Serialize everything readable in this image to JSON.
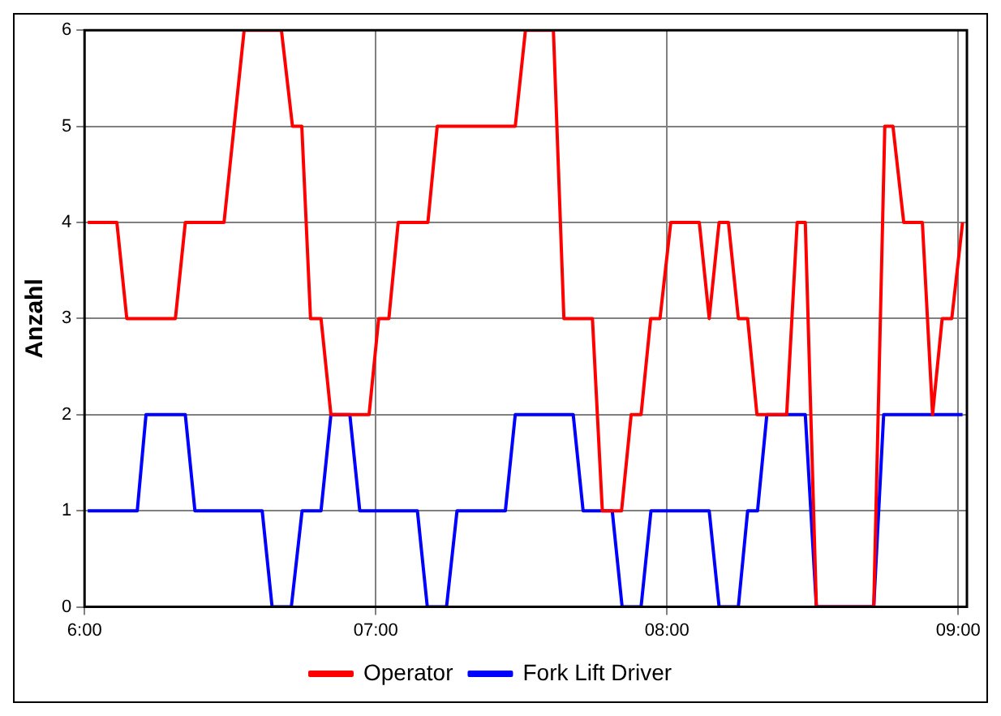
{
  "chart_data": {
    "type": "line",
    "ylabel": "Anzahl",
    "xlim": [
      6,
      9.03
    ],
    "xticks": [
      {
        "value": 6,
        "label": "6:00"
      },
      {
        "value": 7,
        "label": "07:00"
      },
      {
        "value": 8,
        "label": "08:00"
      },
      {
        "value": 9,
        "label": "09:00"
      }
    ],
    "ylim": [
      0,
      6
    ],
    "yticks": [
      0,
      1,
      2,
      3,
      4,
      5,
      6
    ],
    "grid": true,
    "legend": "bottom",
    "marker": "none",
    "line_style": "solid",
    "series": [
      {
        "name": "Operator",
        "color": "#ff0000",
        "x": [
          6.011,
          6.111,
          6.145,
          6.312,
          6.346,
          6.479,
          6.548,
          6.676,
          6.714,
          6.746,
          6.776,
          6.812,
          6.846,
          6.977,
          7.01,
          7.045,
          7.077,
          7.179,
          7.211,
          7.479,
          7.514,
          7.61,
          7.646,
          7.744,
          7.778,
          7.844,
          7.877,
          7.911,
          7.944,
          7.976,
          8.013,
          8.111,
          8.145,
          8.179,
          8.211,
          8.245,
          8.277,
          8.309,
          8.411,
          8.447,
          8.475,
          8.513,
          8.71,
          8.748,
          8.776,
          8.813,
          8.877,
          8.912,
          8.945,
          8.978,
          9.015
        ],
        "values": [
          4,
          4,
          3,
          3,
          4,
          4,
          6,
          6,
          5,
          5,
          3,
          3,
          2,
          2,
          3,
          3,
          4,
          4,
          5,
          5,
          6,
          6,
          3,
          3,
          1,
          1,
          2,
          2,
          3,
          3,
          4,
          4,
          3,
          4,
          4,
          3,
          3,
          2,
          2,
          4,
          4,
          0,
          0,
          5,
          5,
          4,
          4,
          2,
          3,
          3,
          4
        ]
      },
      {
        "name": "Fork Lift Driver",
        "color": "#0000ff",
        "x": [
          6.011,
          6.181,
          6.211,
          6.346,
          6.379,
          6.61,
          6.644,
          6.71,
          6.747,
          6.812,
          6.846,
          6.911,
          6.945,
          7.143,
          7.177,
          7.243,
          7.279,
          7.445,
          7.479,
          7.678,
          7.712,
          7.812,
          7.846,
          7.911,
          7.945,
          8.145,
          8.179,
          8.245,
          8.277,
          8.311,
          8.343,
          8.475,
          8.513,
          8.71,
          8.744,
          9.015
        ],
        "values": [
          1,
          1,
          2,
          2,
          1,
          1,
          0,
          0,
          1,
          1,
          2,
          2,
          1,
          1,
          0,
          0,
          1,
          1,
          2,
          2,
          1,
          1,
          0,
          0,
          1,
          1,
          0,
          0,
          1,
          1,
          2,
          2,
          0,
          0,
          2,
          2
        ]
      }
    ]
  }
}
